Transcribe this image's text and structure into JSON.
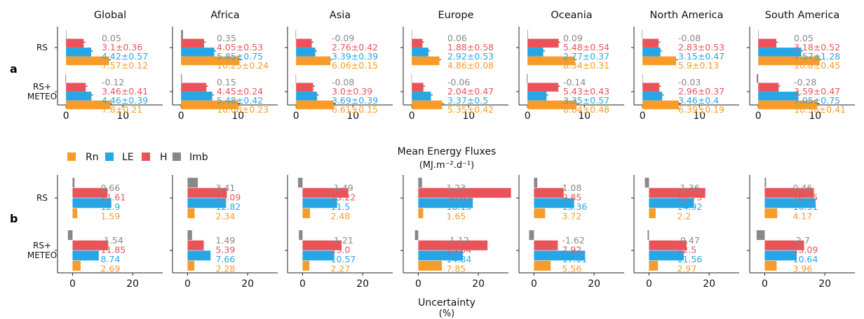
{
  "figure": {
    "panel_labels": [
      "a",
      "b"
    ],
    "section_a_xlabel": [
      "Mean Energy Fluxes",
      "(MJ.m⁻².d⁻¹)"
    ],
    "section_b_xlabel": [
      "Uncertainty",
      "(%)"
    ],
    "row_labels": [
      [
        "RS"
      ],
      [
        "RS+",
        "METEO"
      ]
    ],
    "legend": [
      {
        "label": "Rn",
        "color": "#f79c2a"
      },
      {
        "label": "LE",
        "color": "#27a6e6"
      },
      {
        "label": "H",
        "color": "#e8545a"
      },
      {
        "label": "Imb",
        "color": "#888888"
      }
    ],
    "colors": {
      "Rn": "#f79c2a",
      "LE": "#27a6e6",
      "H": "#e8545a",
      "Imb": "#888888"
    }
  },
  "chart_data": [
    {
      "type": "bar",
      "section": "a",
      "orientation": "horizontal",
      "regions": [
        "Global",
        "Africa",
        "Asia",
        "Europe",
        "Oceania",
        "North America",
        "South America"
      ],
      "rows": [
        "RS",
        "RS+ METEO"
      ],
      "series": [
        "Rn",
        "LE",
        "H",
        "Imb"
      ],
      "xlim": [
        -1.5,
        17
      ],
      "xticks": [
        0,
        10
      ],
      "xticklabels": [
        "0",
        "10"
      ],
      "panels": [
        {
          "region": "Global",
          "groups": [
            {
              "row": "RS",
              "Rn": 7.57,
              "Rn_label": "7.57±0.12",
              "LE": 4.42,
              "LE_label": "4.42±0.57",
              "H": 3.1,
              "H_label": "3.1±0.36",
              "Imb": 0.05,
              "Imb_label": "0.05"
            },
            {
              "row": "RS+ METEO",
              "Rn": 7.8,
              "Rn_label": "7.8±0.21",
              "LE": 4.46,
              "LE_label": "4.46±0.39",
              "H": 3.46,
              "H_label": "3.46±0.41",
              "Imb": -0.12,
              "Imb_label": "-0.12"
            }
          ]
        },
        {
          "region": "Africa",
          "groups": [
            {
              "row": "RS",
              "Rn": 10.25,
              "Rn_label": "10.25±0.24",
              "LE": 5.85,
              "LE_label": "5.85±0.75",
              "H": 4.05,
              "H_label": "4.05±0.53",
              "Imb": 0.35,
              "Imb_label": "0.35"
            },
            {
              "row": "RS+ METEO",
              "Rn": 10.08,
              "Rn_label": "10.08±0.23",
              "LE": 5.48,
              "LE_label": "5.48±0.42",
              "H": 4.45,
              "H_label": "4.45±0.24",
              "Imb": 0.15,
              "Imb_label": "0.15"
            }
          ]
        },
        {
          "region": "Asia",
          "groups": [
            {
              "row": "RS",
              "Rn": 6.06,
              "Rn_label": "6.06±0.15",
              "LE": 3.39,
              "LE_label": "3.39±0.39",
              "H": 2.76,
              "H_label": "2.76±0.42",
              "Imb": -0.09,
              "Imb_label": "-0.09"
            },
            {
              "row": "RS+ METEO",
              "Rn": 6.61,
              "Rn_label": "6.61±0.15",
              "LE": 3.69,
              "LE_label": "3.69±0.39",
              "H": 3.0,
              "H_label": "3.0±0.39",
              "Imb": -0.08,
              "Imb_label": "-0.08"
            }
          ]
        },
        {
          "region": "Europe",
          "groups": [
            {
              "row": "RS",
              "Rn": 4.86,
              "Rn_label": "4.86±0.08",
              "LE": 2.92,
              "LE_label": "2.92±0.53",
              "H": 1.88,
              "H_label": "1.88±0.58",
              "Imb": 0.06,
              "Imb_label": "0.06"
            },
            {
              "row": "RS+ METEO",
              "Rn": 5.35,
              "Rn_label": "5.35±0.42",
              "LE": 3.37,
              "LE_label": "3.37±0.5",
              "H": 2.04,
              "H_label": "2.04±0.47",
              "Imb": -0.06,
              "Imb_label": "-0.06"
            }
          ]
        },
        {
          "region": "Oceania",
          "groups": [
            {
              "row": "RS",
              "Rn": 8.34,
              "Rn_label": "8.34±0.31",
              "LE": 2.77,
              "LE_label": "2.77±0.37",
              "H": 5.48,
              "H_label": "5.48±0.54",
              "Imb": 0.09,
              "Imb_label": "0.09"
            },
            {
              "row": "RS+ METEO",
              "Rn": 8.64,
              "Rn_label": "8.64±0.48",
              "LE": 3.35,
              "LE_label": "3.35±0.57",
              "H": 5.43,
              "H_label": "5.43±0.43",
              "Imb": -0.14,
              "Imb_label": "-0.14"
            }
          ]
        },
        {
          "region": "North America",
          "groups": [
            {
              "row": "RS",
              "Rn": 5.9,
              "Rn_label": "5.9±0.13",
              "LE": 3.15,
              "LE_label": "3.15±0.47",
              "H": 2.83,
              "H_label": "2.83±0.53",
              "Imb": -0.08,
              "Imb_label": "-0.08"
            },
            {
              "row": "RS+ METEO",
              "Rn": 6.39,
              "Rn_label": "6.39±0.19",
              "LE": 3.46,
              "LE_label": "3.46±0.4",
              "H": 2.96,
              "H_label": "2.96±0.37",
              "Imb": -0.03,
              "Imb_label": "-0.03"
            }
          ]
        },
        {
          "region": "South America",
          "groups": [
            {
              "row": "RS",
              "Rn": 10.8,
              "Rn_label": "10.8±0.45",
              "LE": 7.57,
              "LE_label": "7.57±1.28",
              "H": 3.18,
              "H_label": "3.18±0.52",
              "Imb": 0.05,
              "Imb_label": "0.05"
            },
            {
              "row": "RS+ METEO",
              "Rn": 10.36,
              "Rn_label": "10.36±0.41",
              "LE": 7.05,
              "LE_label": "7.05±0.75",
              "H": 3.59,
              "H_label": "3.59±0.47",
              "Imb": -0.28,
              "Imb_label": "-0.28"
            }
          ]
        }
      ]
    },
    {
      "type": "bar",
      "section": "b",
      "orientation": "horizontal",
      "regions": [
        "Global",
        "Africa",
        "Asia",
        "Europe",
        "Oceania",
        "North America",
        "South America"
      ],
      "rows": [
        "RS",
        "RS+ METEO"
      ],
      "series": [
        "Rn",
        "LE",
        "H",
        "Imb"
      ],
      "xlim": [
        -5,
        30
      ],
      "xticks": [
        0,
        20
      ],
      "xticklabels": [
        "0",
        "20"
      ],
      "panels": [
        {
          "region": "Global",
          "groups": [
            {
              "row": "RS",
              "Rn": 1.59,
              "Rn_label": "1.59",
              "LE": 12.9,
              "LE_label": "12.9",
              "H": 11.61,
              "H_label": "11.61",
              "Imb": 0.66,
              "Imb_label": "0.66"
            },
            {
              "row": "RS+ METEO",
              "Rn": 2.69,
              "Rn_label": "2.69",
              "LE": 8.74,
              "LE_label": "8.74",
              "H": 11.85,
              "H_label": "11.85",
              "Imb": -1.54,
              "Imb_label": "-1.54"
            }
          ]
        },
        {
          "region": "Africa",
          "groups": [
            {
              "row": "RS",
              "Rn": 2.34,
              "Rn_label": "2.34",
              "LE": 12.82,
              "LE_label": "12.82",
              "H": 13.09,
              "H_label": "13.09",
              "Imb": 3.41,
              "Imb_label": "3.41"
            },
            {
              "row": "RS+ METEO",
              "Rn": 2.28,
              "Rn_label": "2.28",
              "LE": 7.66,
              "LE_label": "7.66",
              "H": 5.39,
              "H_label": "5.39",
              "Imb": 1.49,
              "Imb_label": "1.49"
            }
          ]
        },
        {
          "region": "Asia",
          "groups": [
            {
              "row": "RS",
              "Rn": 2.48,
              "Rn_label": "2.48",
              "LE": 11.5,
              "LE_label": "11.5",
              "H": 15.22,
              "H_label": "15.22",
              "Imb": -1.49,
              "Imb_label": "-1.49"
            },
            {
              "row": "RS+ METEO",
              "Rn": 2.27,
              "Rn_label": "2.27",
              "LE": 10.57,
              "LE_label": "10.57",
              "H": 13.0,
              "H_label": "13.0",
              "Imb": -1.21,
              "Imb_label": "-1.21"
            }
          ]
        },
        {
          "region": "Europe",
          "groups": [
            {
              "row": "RS",
              "Rn": 1.65,
              "Rn_label": "1.65",
              "LE": 18.15,
              "LE_label": "18.15",
              "H": 30.85,
              "H_label": "30.85",
              "Imb": 1.23,
              "Imb_label": "1.23"
            },
            {
              "row": "RS+ METEO",
              "Rn": 7.85,
              "Rn_label": "7.85",
              "LE": 14.84,
              "LE_label": "14.84",
              "H": 23.04,
              "H_label": "23.04",
              "Imb": -1.12,
              "Imb_label": "-1.12"
            }
          ]
        },
        {
          "region": "Oceania",
          "groups": [
            {
              "row": "RS",
              "Rn": 3.72,
              "Rn_label": "3.72",
              "LE": 13.36,
              "LE_label": "13.36",
              "H": 9.85,
              "H_label": "9.85",
              "Imb": 1.08,
              "Imb_label": "1.08"
            },
            {
              "row": "RS+ METEO",
              "Rn": 5.56,
              "Rn_label": "5.56",
              "LE": 17.01,
              "LE_label": "17.01",
              "H": 7.92,
              "H_label": "7.92",
              "Imb": -1.62,
              "Imb_label": "-1.62"
            }
          ]
        },
        {
          "region": "North America",
          "groups": [
            {
              "row": "RS",
              "Rn": 2.2,
              "Rn_label": "2.2",
              "LE": 14.92,
              "LE_label": "14.92",
              "H": 18.73,
              "H_label": "18.73",
              "Imb": -1.36,
              "Imb_label": "-1.36"
            },
            {
              "row": "RS+ METEO",
              "Rn": 2.97,
              "Rn_label": "2.97",
              "LE": 11.56,
              "LE_label": "11.56",
              "H": 12.5,
              "H_label": "12.5",
              "Imb": -0.47,
              "Imb_label": "-0.47"
            }
          ]
        },
        {
          "region": "South America",
          "groups": [
            {
              "row": "RS",
              "Rn": 4.17,
              "Rn_label": "4.17",
              "LE": 16.91,
              "LE_label": "16.91",
              "H": 16.35,
              "H_label": "16.35",
              "Imb": 0.46,
              "Imb_label": "0.46"
            },
            {
              "row": "RS+ METEO",
              "Rn": 3.96,
              "Rn_label": "3.96",
              "LE": 10.64,
              "LE_label": "10.64",
              "H": 13.09,
              "H_label": "13.09",
              "Imb": -2.7,
              "Imb_label": "-2.7"
            }
          ]
        }
      ]
    }
  ]
}
